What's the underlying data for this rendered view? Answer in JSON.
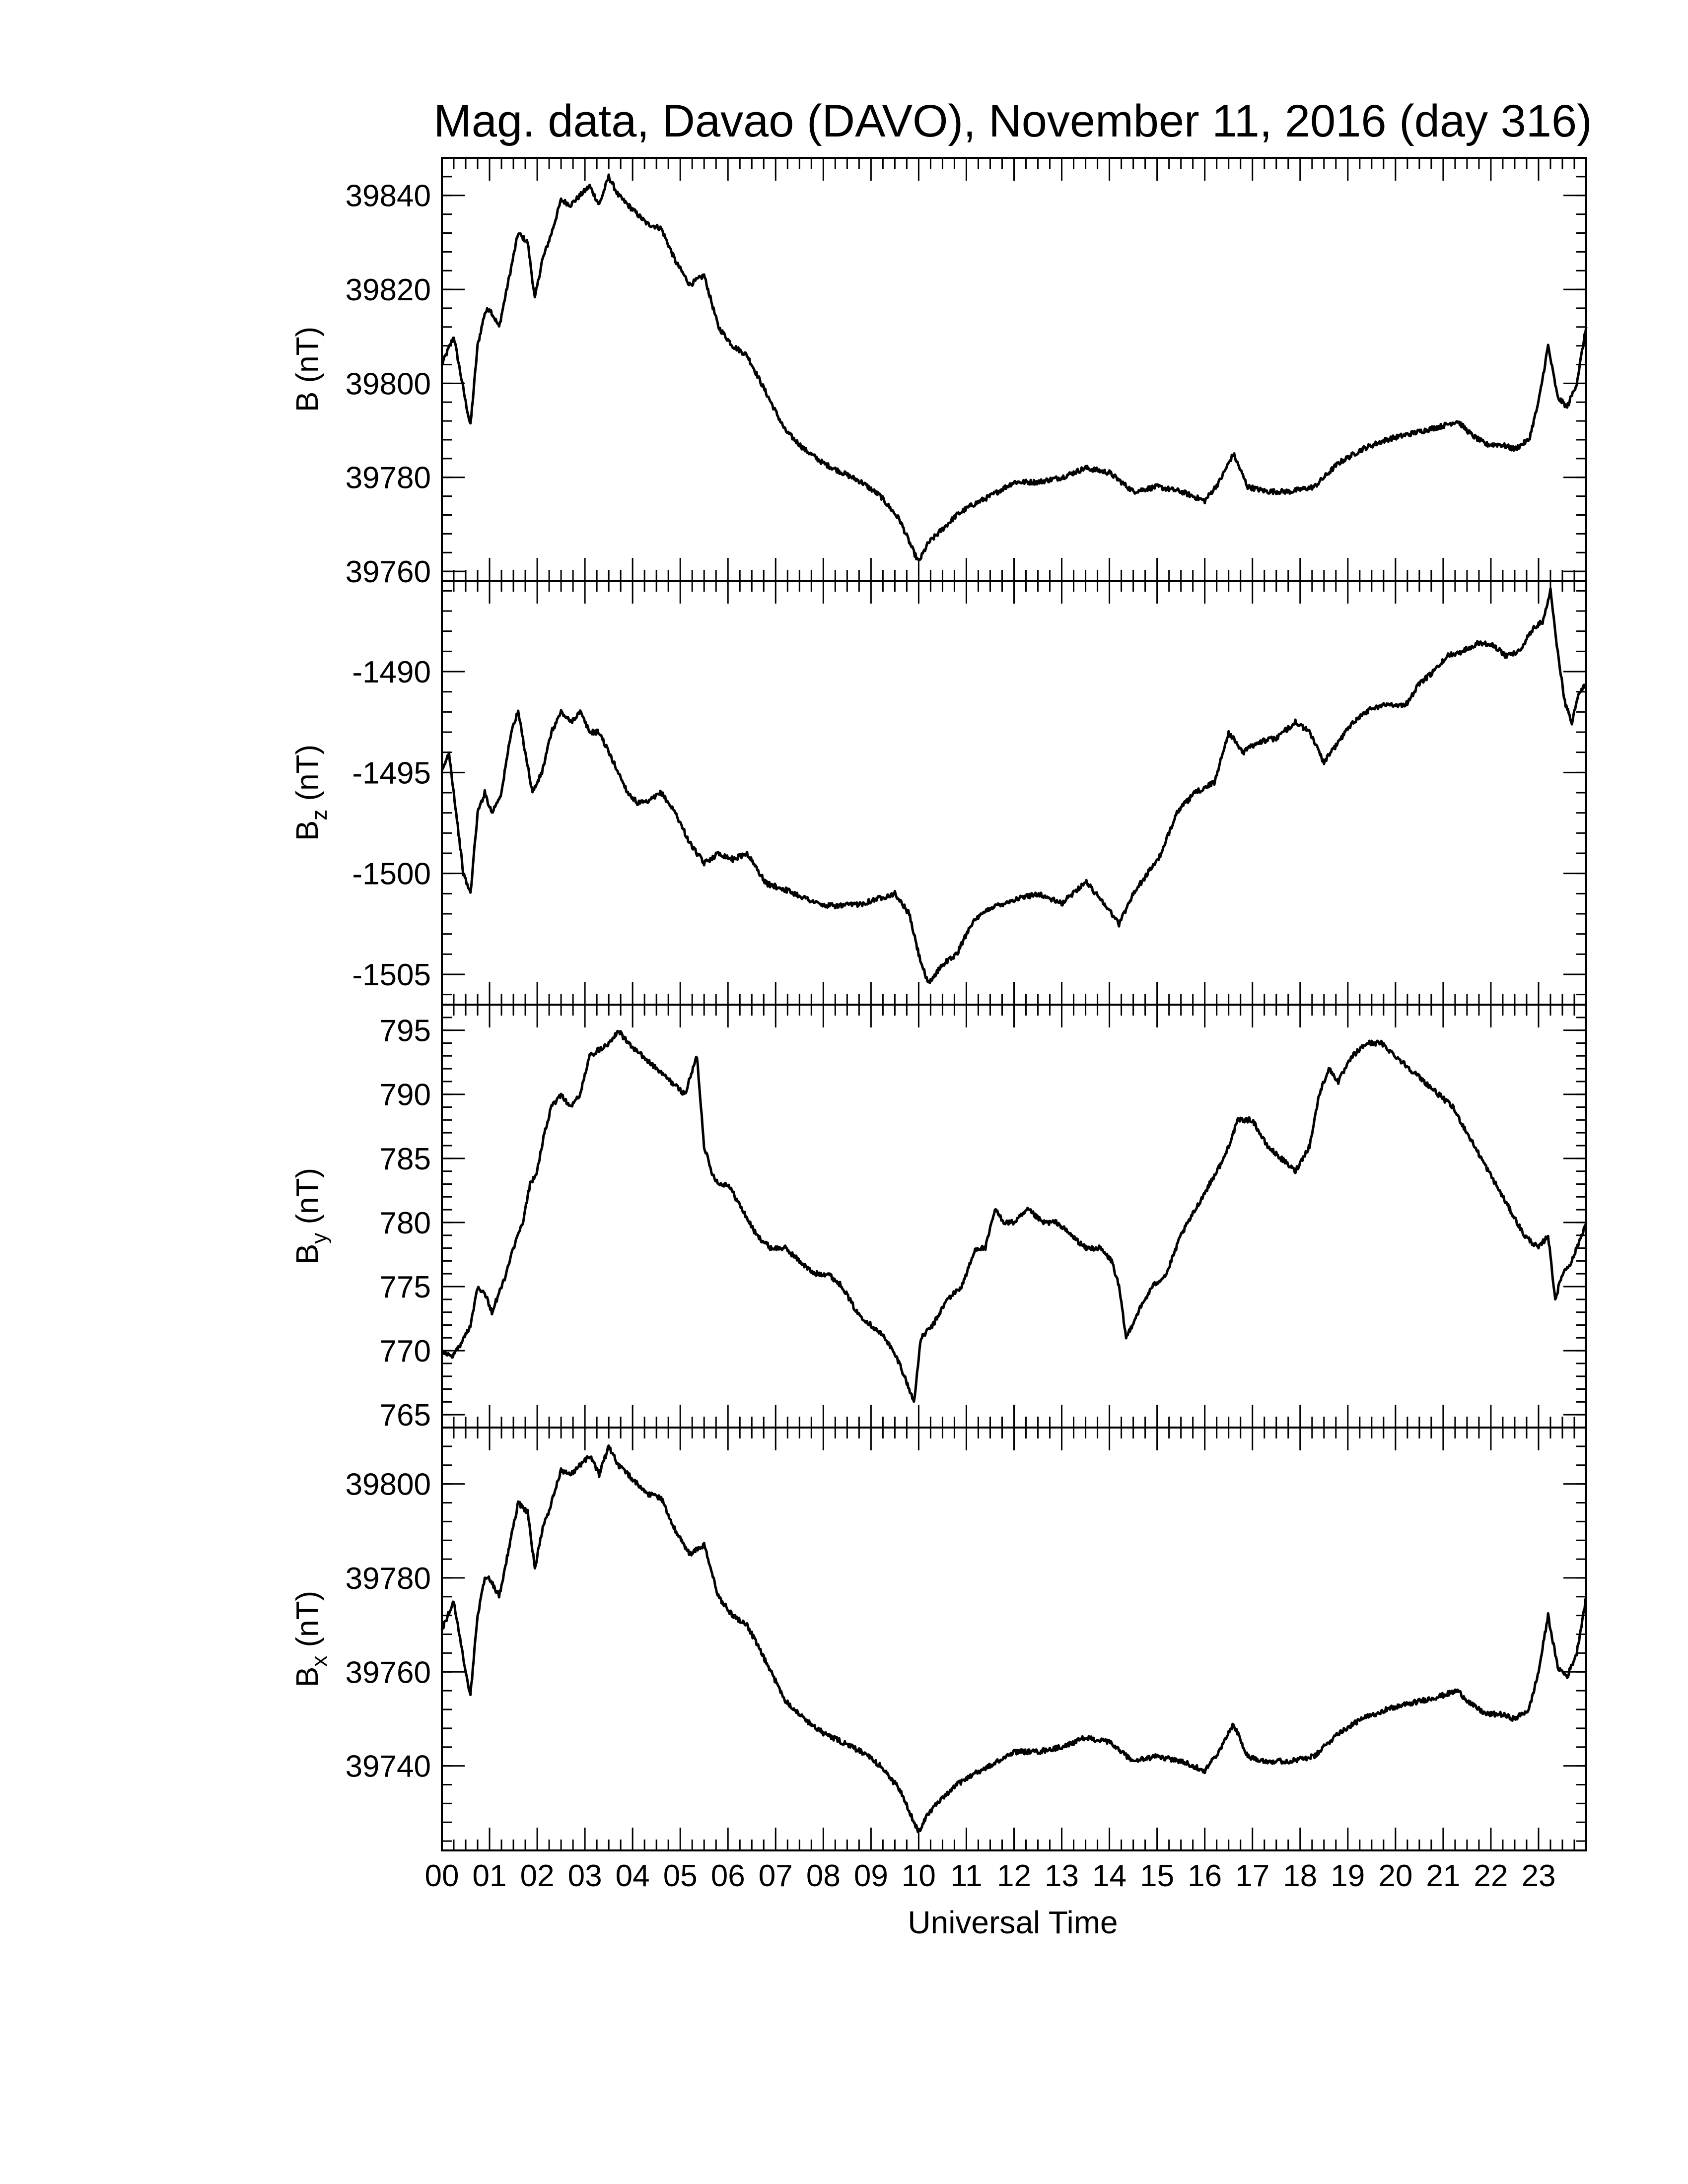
{
  "figure": {
    "title": "Mag. data, Davao (DAVO), November 11, 2016 (day 316)",
    "xlabel": "Universal Time",
    "line_color": "#000000",
    "background": "#ffffff"
  },
  "chart_data": [
    {
      "type": "line",
      "ylabel": "B (nT)",
      "ylabel_main": "B",
      "ylabel_sub": "",
      "ylabel_unit": " (nT)",
      "xlim": [
        0,
        24
      ],
      "ylim": [
        39758,
        39848
      ],
      "yticks": [
        39760,
        39780,
        39800,
        39820,
        39840
      ],
      "x": [
        0,
        0.25,
        0.5,
        0.6,
        0.75,
        0.9,
        1.0,
        1.2,
        1.4,
        1.6,
        1.8,
        1.95,
        2.1,
        2.3,
        2.5,
        2.7,
        2.9,
        3.1,
        3.3,
        3.5,
        3.7,
        4.0,
        4.3,
        4.6,
        4.9,
        5.2,
        5.5,
        5.8,
        6.1,
        6.4,
        6.8,
        7.2,
        7.6,
        8.0,
        8.4,
        8.8,
        9.2,
        9.6,
        9.9,
        10.0,
        10.2,
        10.5,
        10.8,
        11.1,
        11.5,
        12.0,
        12.5,
        13.0,
        13.5,
        14.0,
        14.5,
        15.0,
        15.5,
        16.0,
        16.3,
        16.6,
        16.9,
        17.3,
        17.8,
        18.3,
        18.8,
        19.3,
        19.8,
        20.2,
        20.6,
        21.0,
        21.3,
        21.6,
        21.9,
        22.2,
        22.5,
        22.8,
        23.0,
        23.2,
        23.4,
        23.6,
        23.8,
        24.0
      ],
      "y": [
        39804,
        39810,
        39796,
        39791,
        39808,
        39815,
        39816,
        39812,
        39822,
        39832,
        39830,
        39818,
        39826,
        39832,
        39839,
        39838,
        39840,
        39842,
        39838,
        39844,
        39840,
        39837,
        39834,
        39833,
        39826,
        39821,
        39823,
        39812,
        39808,
        39806,
        39798,
        39790,
        39786,
        39783,
        39781,
        39779,
        39776,
        39771,
        39764,
        39762,
        39766,
        39769,
        39772,
        39774,
        39776,
        39779,
        39779,
        39780,
        39782,
        39781,
        39777,
        39778,
        39777,
        39775,
        39779,
        39785,
        39778,
        39777,
        39777,
        39778,
        39783,
        39786,
        39788,
        39789,
        39790,
        39791,
        39792,
        39789,
        39787,
        39787,
        39786,
        39788,
        39796,
        39808,
        39797,
        39795,
        39800,
        39812
      ]
    },
    {
      "type": "line",
      "ylabel": "Bz (nT)",
      "ylabel_main": "B",
      "ylabel_sub": "z",
      "ylabel_unit": " (nT)",
      "xlim": [
        0,
        24
      ],
      "ylim": [
        -1506.5,
        -1485.5
      ],
      "yticks": [
        -1490,
        -1495,
        -1500,
        -1505
      ],
      "x": [
        0,
        0.15,
        0.3,
        0.45,
        0.6,
        0.75,
        0.9,
        1.05,
        1.25,
        1.45,
        1.6,
        1.75,
        1.9,
        2.1,
        2.3,
        2.5,
        2.7,
        2.9,
        3.1,
        3.3,
        3.5,
        3.7,
        3.9,
        4.1,
        4.3,
        4.6,
        4.9,
        5.2,
        5.5,
        5.8,
        6.1,
        6.4,
        6.8,
        7.2,
        7.6,
        8.0,
        8.4,
        8.8,
        9.2,
        9.5,
        9.8,
        10.0,
        10.2,
        10.5,
        10.8,
        11.1,
        11.5,
        12.0,
        12.5,
        13.0,
        13.5,
        13.9,
        14.2,
        14.5,
        14.8,
        15.1,
        15.4,
        15.8,
        16.2,
        16.5,
        16.8,
        17.1,
        17.5,
        17.9,
        18.2,
        18.5,
        18.8,
        19.1,
        19.5,
        19.9,
        20.2,
        20.5,
        20.8,
        21.1,
        21.4,
        21.7,
        22.0,
        22.3,
        22.6,
        22.9,
        23.1,
        23.25,
        23.4,
        23.55,
        23.7,
        23.85,
        24.0
      ],
      "y": [
        -1495,
        -1494,
        -1497,
        -1500,
        -1501,
        -1497,
        -1496,
        -1497,
        -1496,
        -1493,
        -1492,
        -1494,
        -1496,
        -1495,
        -1493,
        -1492,
        -1492.5,
        -1492,
        -1493,
        -1493,
        -1494,
        -1495,
        -1496,
        -1496.5,
        -1496.5,
        -1496,
        -1497,
        -1498.5,
        -1499.5,
        -1499,
        -1499.3,
        -1499,
        -1500.5,
        -1500.8,
        -1501.2,
        -1501.6,
        -1501.6,
        -1501.5,
        -1501.2,
        -1501,
        -1502,
        -1504,
        -1505.5,
        -1504.5,
        -1504,
        -1502.5,
        -1501.7,
        -1501.3,
        -1501,
        -1501.5,
        -1500.4,
        -1501.5,
        -1502.5,
        -1501,
        -1500,
        -1499,
        -1497,
        -1496,
        -1495.5,
        -1493,
        -1494,
        -1493.5,
        -1493.3,
        -1492.5,
        -1493,
        -1494.5,
        -1493.5,
        -1492.5,
        -1491.8,
        -1491.6,
        -1491.7,
        -1490.6,
        -1490,
        -1489.2,
        -1489,
        -1488.6,
        -1488.6,
        -1489.2,
        -1489,
        -1487.8,
        -1487.5,
        -1486,
        -1489,
        -1491.5,
        -1492.5,
        -1491,
        -1490.6
      ]
    },
    {
      "type": "line",
      "ylabel": "By (nT)",
      "ylabel_main": "B",
      "ylabel_sub": "y",
      "ylabel_unit": " (nT)",
      "xlim": [
        0,
        24
      ],
      "ylim": [
        764,
        797
      ],
      "yticks": [
        765,
        770,
        775,
        780,
        785,
        790,
        795
      ],
      "x": [
        0,
        0.2,
        0.4,
        0.6,
        0.75,
        0.9,
        1.05,
        1.2,
        1.35,
        1.5,
        1.7,
        1.85,
        2.0,
        2.15,
        2.3,
        2.5,
        2.7,
        2.9,
        3.1,
        3.3,
        3.5,
        3.7,
        3.9,
        4.2,
        4.5,
        4.8,
        5.1,
        5.35,
        5.5,
        5.65,
        5.8,
        6.0,
        6.3,
        6.6,
        6.9,
        7.2,
        7.5,
        7.8,
        8.1,
        8.4,
        8.7,
        9.0,
        9.3,
        9.6,
        9.8,
        9.9,
        10.05,
        10.3,
        10.6,
        10.9,
        11.2,
        11.4,
        11.6,
        11.8,
        12.0,
        12.3,
        12.6,
        12.9,
        13.2,
        13.5,
        13.8,
        14.05,
        14.2,
        14.35,
        14.6,
        14.9,
        15.2,
        15.5,
        15.8,
        16.1,
        16.4,
        16.7,
        17.0,
        17.3,
        17.6,
        17.9,
        18.2,
        18.4,
        18.6,
        18.8,
        19.1,
        19.4,
        19.7,
        20.0,
        20.3,
        20.6,
        20.9,
        21.2,
        21.5,
        21.8,
        22.1,
        22.4,
        22.7,
        23.0,
        23.2,
        23.35,
        23.5,
        23.7,
        23.9,
        24.0
      ],
      "y": [
        770,
        769.5,
        770.5,
        772,
        775,
        774.5,
        773,
        774.5,
        776,
        778,
        780,
        783,
        784,
        787,
        789,
        790,
        789,
        790,
        793,
        793.5,
        794,
        795,
        794,
        793,
        792,
        791,
        790,
        793,
        786,
        784,
        783,
        783,
        781,
        779,
        778,
        778,
        777,
        776,
        776,
        775,
        773,
        772,
        771,
        769,
        767,
        766,
        771,
        772,
        774,
        775,
        778,
        778,
        781,
        780,
        780,
        781,
        780,
        780,
        779,
        778,
        778,
        777,
        775,
        771,
        773,
        775,
        776,
        779,
        781,
        783,
        785,
        788,
        788,
        786,
        785,
        784,
        786,
        790,
        792,
        791,
        793,
        794,
        794,
        793,
        792,
        791,
        790,
        789,
        787,
        785,
        783,
        781,
        779,
        778,
        779,
        774,
        776,
        777,
        779,
        780
      ]
    },
    {
      "type": "line",
      "ylabel": "Bx (nT)",
      "ylabel_main": "B",
      "ylabel_sub": "x",
      "ylabel_unit": " (nT)",
      "xlim": [
        0,
        24
      ],
      "ylim": [
        39722,
        39812
      ],
      "yticks": [
        39740,
        39760,
        39780,
        39800
      ],
      "x": [
        0,
        0.25,
        0.5,
        0.6,
        0.75,
        0.9,
        1.0,
        1.2,
        1.4,
        1.6,
        1.8,
        1.95,
        2.1,
        2.3,
        2.5,
        2.7,
        2.9,
        3.1,
        3.3,
        3.5,
        3.7,
        4.0,
        4.3,
        4.6,
        4.9,
        5.2,
        5.5,
        5.8,
        6.1,
        6.4,
        6.8,
        7.2,
        7.6,
        8.0,
        8.4,
        8.8,
        9.2,
        9.6,
        9.9,
        10.0,
        10.2,
        10.5,
        10.8,
        11.1,
        11.5,
        12.0,
        12.5,
        13.0,
        13.5,
        14.0,
        14.5,
        15.0,
        15.5,
        16.0,
        16.3,
        16.6,
        16.9,
        17.3,
        17.8,
        18.3,
        18.8,
        19.3,
        19.8,
        20.2,
        20.6,
        21.0,
        21.3,
        21.6,
        21.9,
        22.2,
        22.5,
        22.8,
        23.0,
        23.2,
        23.4,
        23.6,
        23.8,
        24.0
      ],
      "y": [
        39769,
        39775,
        39760,
        39755,
        39772,
        39780,
        39780,
        39776,
        39786,
        39796,
        39794,
        39782,
        39790,
        39796,
        39803,
        39802,
        39804,
        39806,
        39802,
        39808,
        39804,
        39801,
        39798,
        39797,
        39790,
        39785,
        39787,
        39776,
        39772,
        39770,
        39762,
        39754,
        39750,
        39747,
        39745,
        39743,
        39740,
        39735,
        39728,
        39726,
        39730,
        39733,
        39736,
        39738,
        39740,
        39743,
        39743,
        39744,
        39746,
        39745,
        39741,
        39742,
        39741,
        39739,
        39743,
        39749,
        39742,
        39741,
        39741,
        39742,
        39747,
        39750,
        39752,
        39753,
        39754,
        39755,
        39756,
        39753,
        39751,
        39751,
        39750,
        39752,
        39760,
        39772,
        39761,
        39759,
        39764,
        39776
      ]
    }
  ],
  "x_axis": {
    "ticks": [
      0,
      1,
      2,
      3,
      4,
      5,
      6,
      7,
      8,
      9,
      10,
      11,
      12,
      13,
      14,
      15,
      16,
      17,
      18,
      19,
      20,
      21,
      22,
      23
    ],
    "tick_labels": [
      "00",
      "01",
      "02",
      "03",
      "04",
      "05",
      "06",
      "07",
      "08",
      "09",
      "10",
      "11",
      "12",
      "13",
      "14",
      "15",
      "16",
      "17",
      "18",
      "19",
      "20",
      "21",
      "22",
      "23"
    ]
  }
}
